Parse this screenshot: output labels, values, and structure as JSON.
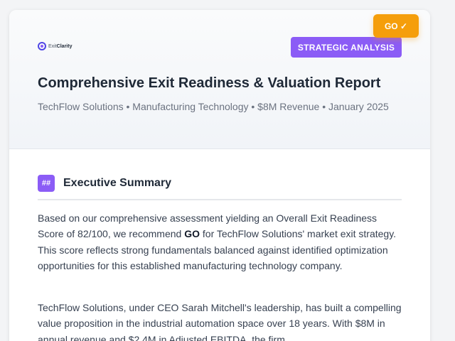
{
  "brand": {
    "name_part1": "Exit",
    "name_part2": "Clarity"
  },
  "badge": {
    "label": "STRATEGIC ANALYSIS"
  },
  "go_badge": {
    "label": "GO ✓"
  },
  "report": {
    "title": "Comprehensive Exit Readiness & Valuation Report",
    "subtitle": "TechFlow Solutions • Manufacturing Technology • $8M Revenue • January 2025"
  },
  "section": {
    "icon_text": "##",
    "title": "Executive Summary",
    "p1_before": "Based on our comprehensive assessment yielding an Overall Exit Readiness Score of 82/100, we recommend ",
    "p1_bold": "GO",
    "p1_after": " for TechFlow Solutions' market exit strategy. This score reflects strong fundamentals balanced against identified optimization opportunities for this established manufacturing technology company.",
    "p2": "TechFlow Solutions, under CEO Sarah Mitchell's leadership, has built a compelling value proposition in the industrial automation space over 18 years. With $8M in annual revenue and $2.4M in Adjusted EBITDA, the firm"
  },
  "colors": {
    "accent": "#8b5cf6",
    "go": "#f59e0b",
    "logo": "#4f46e5"
  }
}
